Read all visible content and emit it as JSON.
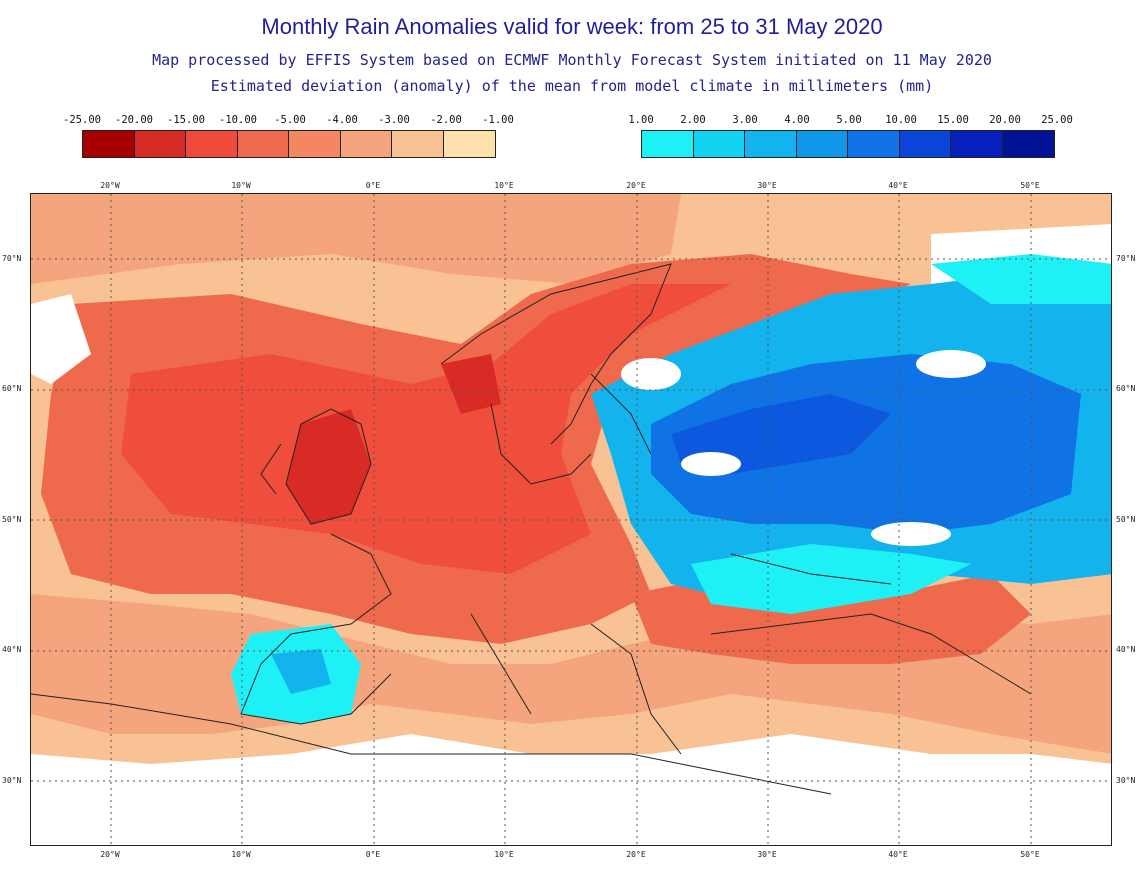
{
  "title": "Monthly Rain Anomalies valid for week: from 25 to 31 May 2020",
  "subtitle_1": "Map processed by EFFIS System based on ECMWF Monthly Forecast System initiated on 11 May 2020",
  "subtitle_2": "Estimated deviation (anomaly) of the mean from model climate in millimeters (mm)",
  "legend_negative": {
    "labels": [
      "-25.00",
      "-20.00",
      "-15.00",
      "-10.00",
      "-5.00",
      "-4.00",
      "-3.00",
      "-2.00",
      "-1.00"
    ],
    "colors": [
      "#a80000",
      "#d92b25",
      "#ef4b3b",
      "#ef6a4d",
      "#f28762",
      "#f5a57d",
      "#f8c294",
      "#fde1ad"
    ]
  },
  "legend_positive": {
    "labels": [
      "1.00",
      "2.00",
      "3.00",
      "4.00",
      "5.00",
      "10.00",
      "15.00",
      "20.00",
      "25.00"
    ],
    "colors": [
      "#1ef1f6",
      "#11d2f0",
      "#13b4ee",
      "#1197ea",
      "#0f73e6",
      "#0b44d9",
      "#0720bd",
      "#041296"
    ]
  },
  "longitude_labels": [
    "20°W",
    "10°W",
    "0°E",
    "10°E",
    "20°E",
    "30°E",
    "40°E",
    "50°E"
  ],
  "latitude_labels": [
    "70°N",
    "60°N",
    "50°N",
    "40°N",
    "30°N"
  ],
  "background_colors": {
    "title": "#1f1f9c",
    "land_outline": "#222222",
    "border_gray": "#b8b8b8"
  }
}
